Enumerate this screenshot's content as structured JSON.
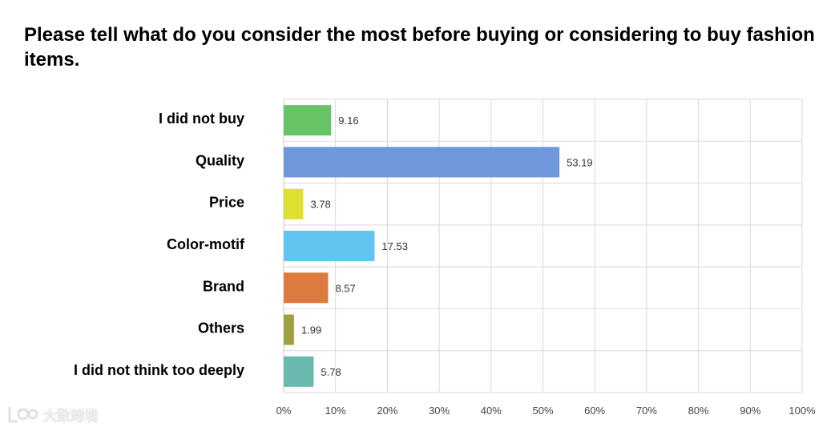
{
  "chart_data": {
    "type": "bar",
    "orientation": "horizontal",
    "title": "Please tell what do you consider the most before buying or considering to buy fashion items.",
    "categories": [
      "I did not buy",
      "Quality",
      "Price",
      "Color-motif",
      "Brand",
      "Others",
      "I did not think too deeply"
    ],
    "values": [
      9.16,
      53.19,
      3.78,
      17.53,
      8.57,
      1.99,
      5.78
    ],
    "data_labels": [
      "9.16",
      "53.19",
      "3.78",
      "17.53",
      "8.57",
      "1.99",
      "5.78"
    ],
    "colors": [
      "#66c466",
      "#6f98dc",
      "#e0e030",
      "#62c4f0",
      "#dd7a40",
      "#a0a040",
      "#6ab9ae"
    ],
    "xlim": [
      0,
      100
    ],
    "x_ticks": [
      "0%",
      "10%",
      "20%",
      "30%",
      "40%",
      "50%",
      "60%",
      "70%",
      "80%",
      "90%",
      "100%"
    ],
    "xlabel": "",
    "ylabel": "",
    "grid": true,
    "legend": "none"
  },
  "watermark": {
    "text": "大数跨境"
  }
}
